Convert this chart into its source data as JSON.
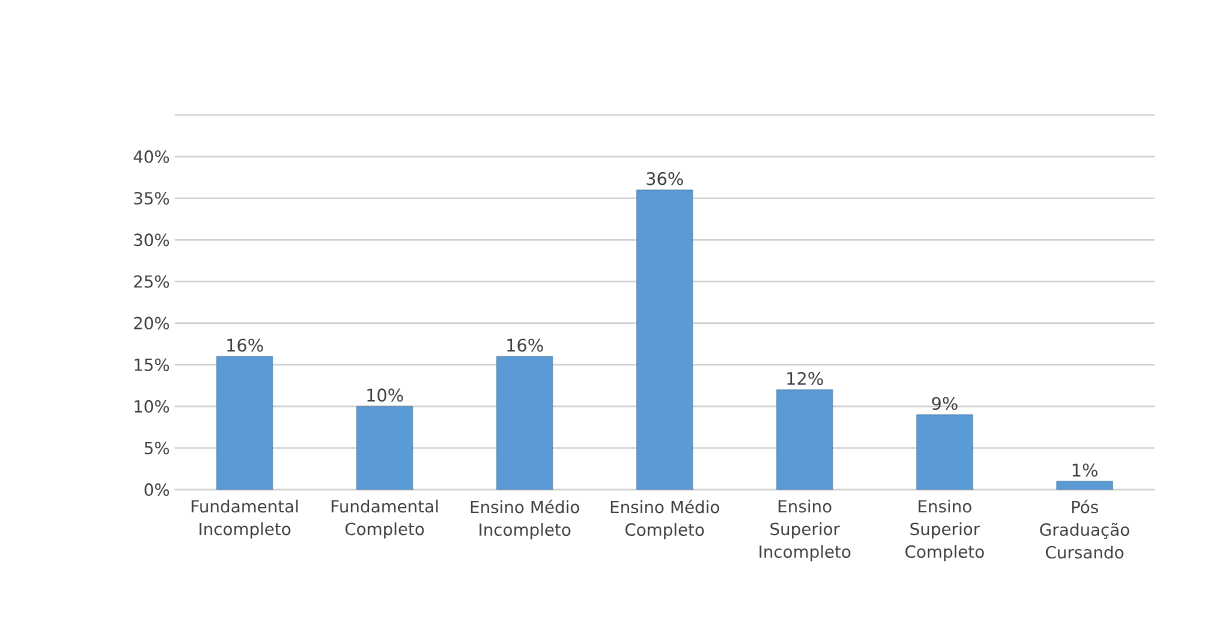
{
  "chart_data": {
    "type": "bar",
    "categories": [
      "Fundamental Incompleto",
      "Fundamental Completo",
      "Ensino Médio Incompleto",
      "Ensino Médio Completo",
      "Ensino Superior Incompleto",
      "Ensino Superior Completo",
      "Pós Graduação Cursando"
    ],
    "values": [
      16,
      10,
      16,
      36,
      12,
      9,
      1
    ],
    "value_labels": [
      "16%",
      "10%",
      "16%",
      "36%",
      "12%",
      "9%",
      "1%"
    ],
    "color": "#5b9bd5",
    "ylim": [
      0,
      45
    ],
    "yticks": [
      {
        "value": 0,
        "label": "0%"
      },
      {
        "value": 5,
        "label": "5%"
      },
      {
        "value": 10,
        "label": "10%"
      },
      {
        "value": 15,
        "label": "15%"
      },
      {
        "value": 20,
        "label": "20%"
      },
      {
        "value": 25,
        "label": "25%"
      },
      {
        "value": 30,
        "label": "30%"
      },
      {
        "value": 35,
        "label": "35%"
      },
      {
        "value": 40,
        "label": "40%"
      },
      {
        "value": 45,
        "label": null
      }
    ],
    "grid": "y"
  }
}
